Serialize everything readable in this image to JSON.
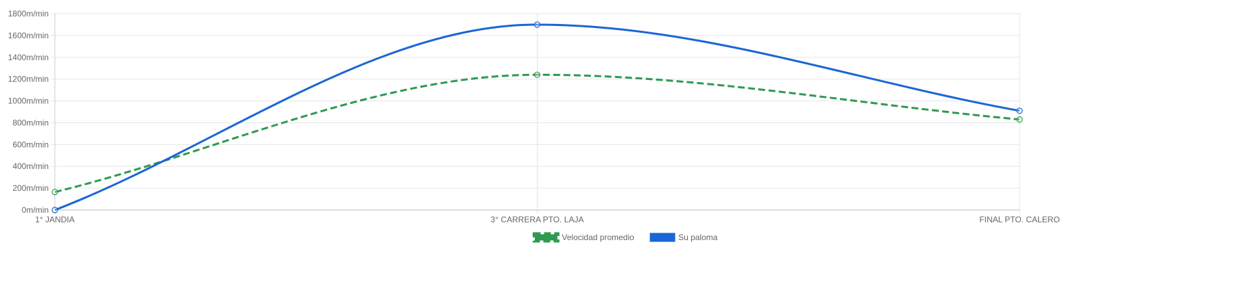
{
  "chart_data": {
    "type": "line",
    "categories": [
      "1° JANDIA",
      "3° CARRERA PTO. LAJA",
      "FINAL PTO. CALERO"
    ],
    "y_unit_suffix": "m/min",
    "ylim": [
      0,
      1800
    ],
    "y_ticks": [
      0,
      200,
      400,
      600,
      800,
      1000,
      1200,
      1400,
      1600,
      1800
    ],
    "grid": true,
    "legend_position": "bottom",
    "series": [
      {
        "name": "Velocidad promedio",
        "values": [
          165,
          1240,
          830
        ],
        "color": "#2e9a50",
        "style": "dashed"
      },
      {
        "name": "Su paloma",
        "values": [
          0,
          1700,
          910
        ],
        "color": "#1a66d6",
        "style": "solid"
      }
    ]
  }
}
